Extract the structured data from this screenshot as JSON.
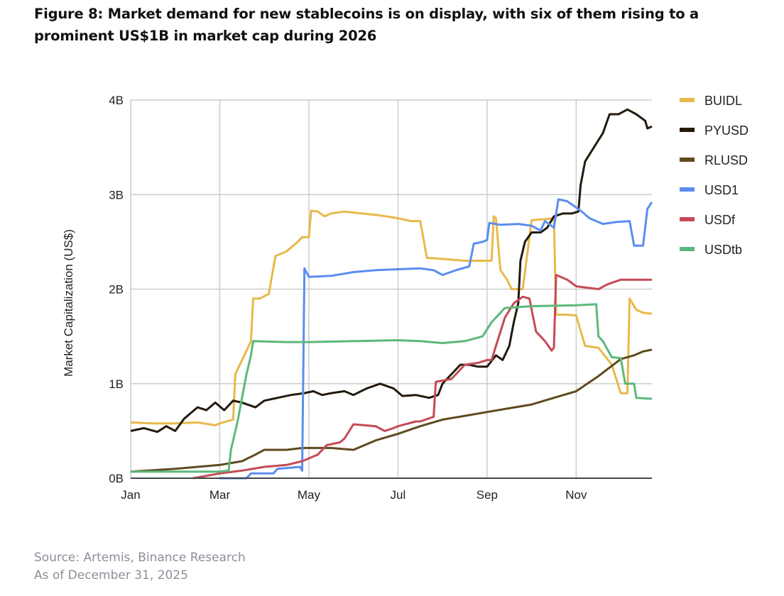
{
  "figure": {
    "title": "Figure 8: Market demand for new stablecoins is on display, with six of them rising to a prominent US$1B in market cap during 2026",
    "source_line1": "Source: Artemis, Binance Research",
    "source_line2": "As of December 31, 2025"
  },
  "chart_data": {
    "type": "line",
    "title": "",
    "xlabel": "",
    "ylabel": "Market Capitalization (US$)",
    "x_unit": "month index (0 = Jan 1, 12 = Dec 31)",
    "xlim": [
      0,
      11.7
    ],
    "ylim": [
      0,
      4
    ],
    "y_unit": "billions USD",
    "x_ticks": [
      {
        "value": 0,
        "label": "Jan"
      },
      {
        "value": 2,
        "label": "Mar"
      },
      {
        "value": 4,
        "label": "May"
      },
      {
        "value": 6,
        "label": "Jul"
      },
      {
        "value": 8,
        "label": "Sep"
      },
      {
        "value": 10,
        "label": "Nov"
      }
    ],
    "y_ticks": [
      {
        "value": 0,
        "label": "0B"
      },
      {
        "value": 1,
        "label": "1B"
      },
      {
        "value": 2,
        "label": "2B"
      },
      {
        "value": 3,
        "label": "3B"
      },
      {
        "value": 4,
        "label": "4B"
      }
    ],
    "grid": true,
    "legend_position": "right",
    "series": [
      {
        "name": "BUIDL",
        "color": "#e8b94a",
        "points": [
          [
            0,
            0.59
          ],
          [
            0.5,
            0.58
          ],
          [
            1,
            0.58
          ],
          [
            1.5,
            0.59
          ],
          [
            1.9,
            0.56
          ],
          [
            2,
            0.58
          ],
          [
            2.3,
            0.62
          ],
          [
            2.35,
            1.1
          ],
          [
            2.45,
            1.2
          ],
          [
            2.6,
            1.35
          ],
          [
            2.7,
            1.45
          ],
          [
            2.75,
            1.9
          ],
          [
            2.9,
            1.9
          ],
          [
            3.1,
            1.95
          ],
          [
            3.25,
            2.35
          ],
          [
            3.5,
            2.4
          ],
          [
            3.75,
            2.5
          ],
          [
            3.85,
            2.55
          ],
          [
            4.0,
            2.55
          ],
          [
            4.05,
            2.83
          ],
          [
            4.2,
            2.82
          ],
          [
            4.35,
            2.77
          ],
          [
            4.5,
            2.8
          ],
          [
            4.8,
            2.82
          ],
          [
            5.2,
            2.8
          ],
          [
            5.6,
            2.78
          ],
          [
            6.0,
            2.75
          ],
          [
            6.3,
            2.72
          ],
          [
            6.5,
            2.72
          ],
          [
            6.65,
            2.33
          ],
          [
            7.0,
            2.32
          ],
          [
            7.5,
            2.3
          ],
          [
            7.9,
            2.3
          ],
          [
            8.1,
            2.3
          ],
          [
            8.15,
            2.77
          ],
          [
            8.2,
            2.75
          ],
          [
            8.3,
            2.2
          ],
          [
            8.45,
            2.1
          ],
          [
            8.55,
            2.0
          ],
          [
            8.8,
            2.0
          ],
          [
            9.0,
            2.73
          ],
          [
            9.3,
            2.74
          ],
          [
            9.5,
            2.75
          ],
          [
            9.55,
            1.73
          ],
          [
            9.8,
            1.73
          ],
          [
            10.0,
            1.72
          ],
          [
            10.2,
            1.4
          ],
          [
            10.5,
            1.38
          ],
          [
            10.8,
            1.2
          ],
          [
            11.0,
            0.9
          ],
          [
            11.15,
            0.9
          ],
          [
            11.2,
            1.9
          ],
          [
            11.35,
            1.78
          ],
          [
            11.5,
            1.75
          ],
          [
            11.7,
            1.74
          ]
        ]
      },
      {
        "name": "PYUSD",
        "color": "#231a0d",
        "points": [
          [
            0,
            0.5
          ],
          [
            0.3,
            0.53
          ],
          [
            0.6,
            0.49
          ],
          [
            0.8,
            0.55
          ],
          [
            1.0,
            0.5
          ],
          [
            1.2,
            0.63
          ],
          [
            1.5,
            0.75
          ],
          [
            1.7,
            0.72
          ],
          [
            1.9,
            0.8
          ],
          [
            2.1,
            0.72
          ],
          [
            2.3,
            0.82
          ],
          [
            2.5,
            0.8
          ],
          [
            2.8,
            0.75
          ],
          [
            3.0,
            0.82
          ],
          [
            3.3,
            0.85
          ],
          [
            3.6,
            0.88
          ],
          [
            3.9,
            0.9
          ],
          [
            4.1,
            0.92
          ],
          [
            4.3,
            0.88
          ],
          [
            4.5,
            0.9
          ],
          [
            4.8,
            0.92
          ],
          [
            5.0,
            0.88
          ],
          [
            5.3,
            0.95
          ],
          [
            5.6,
            1.0
          ],
          [
            5.9,
            0.95
          ],
          [
            6.1,
            0.87
          ],
          [
            6.4,
            0.88
          ],
          [
            6.7,
            0.85
          ],
          [
            6.9,
            0.88
          ],
          [
            7.0,
            1.0
          ],
          [
            7.2,
            1.1
          ],
          [
            7.4,
            1.2
          ],
          [
            7.6,
            1.2
          ],
          [
            7.8,
            1.18
          ],
          [
            8.0,
            1.18
          ],
          [
            8.2,
            1.3
          ],
          [
            8.35,
            1.25
          ],
          [
            8.5,
            1.4
          ],
          [
            8.6,
            1.65
          ],
          [
            8.7,
            1.85
          ],
          [
            8.75,
            2.3
          ],
          [
            8.85,
            2.5
          ],
          [
            9.0,
            2.6
          ],
          [
            9.2,
            2.6
          ],
          [
            9.35,
            2.65
          ],
          [
            9.5,
            2.77
          ],
          [
            9.7,
            2.8
          ],
          [
            9.9,
            2.8
          ],
          [
            10.05,
            2.82
          ],
          [
            10.1,
            3.1
          ],
          [
            10.2,
            3.35
          ],
          [
            10.4,
            3.5
          ],
          [
            10.6,
            3.65
          ],
          [
            10.75,
            3.85
          ],
          [
            10.95,
            3.85
          ],
          [
            11.15,
            3.9
          ],
          [
            11.35,
            3.85
          ],
          [
            11.55,
            3.78
          ],
          [
            11.6,
            3.7
          ],
          [
            11.7,
            3.72
          ]
        ]
      },
      {
        "name": "RLUSD",
        "color": "#5f4a1e",
        "points": [
          [
            0,
            0.07
          ],
          [
            1.0,
            0.1
          ],
          [
            2.0,
            0.14
          ],
          [
            2.5,
            0.18
          ],
          [
            2.8,
            0.25
          ],
          [
            3.0,
            0.3
          ],
          [
            3.5,
            0.3
          ],
          [
            3.85,
            0.32
          ],
          [
            4.5,
            0.32
          ],
          [
            5.0,
            0.3
          ],
          [
            5.5,
            0.4
          ],
          [
            6.0,
            0.47
          ],
          [
            6.5,
            0.55
          ],
          [
            7.0,
            0.62
          ],
          [
            7.5,
            0.66
          ],
          [
            8.0,
            0.7
          ],
          [
            8.5,
            0.74
          ],
          [
            9.0,
            0.78
          ],
          [
            9.5,
            0.85
          ],
          [
            10.0,
            0.92
          ],
          [
            10.5,
            1.08
          ],
          [
            11.0,
            1.26
          ],
          [
            11.3,
            1.3
          ],
          [
            11.5,
            1.34
          ],
          [
            11.7,
            1.36
          ]
        ]
      },
      {
        "name": "USD1",
        "color": "#5b8def",
        "points": [
          [
            2.0,
            0.0
          ],
          [
            2.6,
            0.0
          ],
          [
            2.7,
            0.05
          ],
          [
            3.2,
            0.05
          ],
          [
            3.3,
            0.1
          ],
          [
            3.8,
            0.12
          ],
          [
            3.85,
            0.08
          ],
          [
            3.9,
            2.22
          ],
          [
            4.0,
            2.13
          ],
          [
            4.5,
            2.14
          ],
          [
            5.0,
            2.18
          ],
          [
            5.5,
            2.2
          ],
          [
            6.0,
            2.21
          ],
          [
            6.5,
            2.22
          ],
          [
            6.8,
            2.2
          ],
          [
            7.0,
            2.15
          ],
          [
            7.3,
            2.2
          ],
          [
            7.6,
            2.24
          ],
          [
            7.7,
            2.48
          ],
          [
            7.9,
            2.5
          ],
          [
            8.0,
            2.52
          ],
          [
            8.05,
            2.7
          ],
          [
            8.3,
            2.68
          ],
          [
            8.7,
            2.69
          ],
          [
            9.0,
            2.67
          ],
          [
            9.2,
            2.62
          ],
          [
            9.3,
            2.72
          ],
          [
            9.5,
            2.65
          ],
          [
            9.6,
            2.95
          ],
          [
            9.8,
            2.93
          ],
          [
            10.1,
            2.83
          ],
          [
            10.3,
            2.75
          ],
          [
            10.6,
            2.69
          ],
          [
            10.9,
            2.71
          ],
          [
            11.2,
            2.72
          ],
          [
            11.3,
            2.46
          ],
          [
            11.5,
            2.46
          ],
          [
            11.6,
            2.85
          ],
          [
            11.7,
            2.92
          ]
        ]
      },
      {
        "name": "USDf",
        "color": "#c44b56",
        "points": [
          [
            1.4,
            0.0
          ],
          [
            2.0,
            0.05
          ],
          [
            2.5,
            0.08
          ],
          [
            3.0,
            0.12
          ],
          [
            3.5,
            0.14
          ],
          [
            3.85,
            0.18
          ],
          [
            4.2,
            0.25
          ],
          [
            4.4,
            0.35
          ],
          [
            4.7,
            0.38
          ],
          [
            4.8,
            0.42
          ],
          [
            5.0,
            0.57
          ],
          [
            5.5,
            0.55
          ],
          [
            5.7,
            0.5
          ],
          [
            5.9,
            0.53
          ],
          [
            6.0,
            0.55
          ],
          [
            6.4,
            0.6
          ],
          [
            6.5,
            0.6
          ],
          [
            6.8,
            0.65
          ],
          [
            6.85,
            1.02
          ],
          [
            7.2,
            1.05
          ],
          [
            7.5,
            1.2
          ],
          [
            7.8,
            1.22
          ],
          [
            8.0,
            1.25
          ],
          [
            8.1,
            1.25
          ],
          [
            8.2,
            1.4
          ],
          [
            8.4,
            1.7
          ],
          [
            8.6,
            1.85
          ],
          [
            8.8,
            1.92
          ],
          [
            8.95,
            1.9
          ],
          [
            9.1,
            1.55
          ],
          [
            9.3,
            1.45
          ],
          [
            9.45,
            1.35
          ],
          [
            9.5,
            1.38
          ],
          [
            9.55,
            2.15
          ],
          [
            9.8,
            2.1
          ],
          [
            10.0,
            2.03
          ],
          [
            10.5,
            2.0
          ],
          [
            10.7,
            2.05
          ],
          [
            11.0,
            2.1
          ],
          [
            11.7,
            2.1
          ]
        ]
      },
      {
        "name": "USDtb",
        "color": "#5cb87a",
        "points": [
          [
            0,
            0.07
          ],
          [
            1.0,
            0.07
          ],
          [
            2.0,
            0.07
          ],
          [
            2.2,
            0.08
          ],
          [
            2.25,
            0.3
          ],
          [
            2.4,
            0.6
          ],
          [
            2.5,
            0.85
          ],
          [
            2.6,
            1.1
          ],
          [
            2.7,
            1.3
          ],
          [
            2.75,
            1.45
          ],
          [
            3.5,
            1.44
          ],
          [
            4.0,
            1.44
          ],
          [
            5.0,
            1.45
          ],
          [
            6.0,
            1.46
          ],
          [
            6.5,
            1.45
          ],
          [
            7.0,
            1.43
          ],
          [
            7.5,
            1.45
          ],
          [
            7.9,
            1.5
          ],
          [
            8.1,
            1.65
          ],
          [
            8.3,
            1.75
          ],
          [
            8.4,
            1.8
          ],
          [
            9.0,
            1.82
          ],
          [
            10.0,
            1.83
          ],
          [
            10.45,
            1.84
          ],
          [
            10.5,
            1.5
          ],
          [
            10.6,
            1.45
          ],
          [
            10.8,
            1.28
          ],
          [
            11.0,
            1.27
          ],
          [
            11.1,
            1.0
          ],
          [
            11.3,
            1.0
          ],
          [
            11.35,
            0.85
          ],
          [
            11.7,
            0.84
          ]
        ]
      }
    ]
  }
}
